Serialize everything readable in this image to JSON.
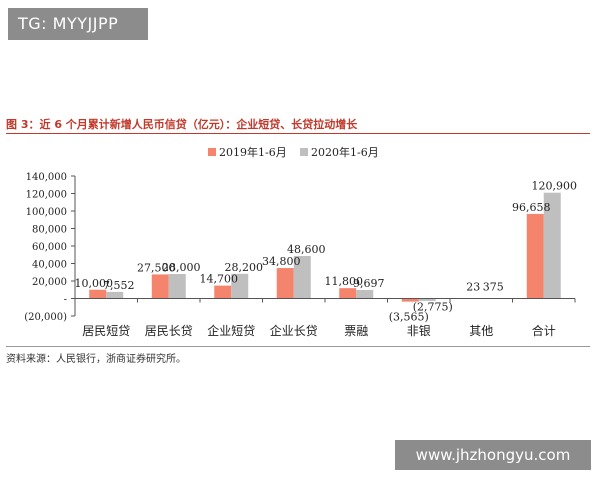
{
  "watermark_top": "TG: MYYJJPP",
  "watermark_bottom": "www.jhzhongyu.com",
  "figure_title": "图 3：近 6 个月累计新增人民币信贷（亿元）：企业短贷、长贷拉动增长",
  "source": "资料来源：人民银行，浙商证券研究所。",
  "colors": {
    "series_2019": "#f4846c",
    "series_2020": "#bfbfbf",
    "title": "#c0392b"
  },
  "chart_data": {
    "type": "bar",
    "title": "",
    "xlabel": "",
    "ylabel": "",
    "ylim": [
      -20000,
      140000
    ],
    "y_ticks": [
      "140,000",
      "120,000",
      "100,000",
      "80,000",
      "60,000",
      "40,000",
      "20,000",
      "-",
      "(20,000)"
    ],
    "y_tick_values": [
      140000,
      120000,
      100000,
      80000,
      60000,
      40000,
      20000,
      0,
      -20000
    ],
    "categories": [
      "居民短贷",
      "居民长贷",
      "企业短贷",
      "企业长贷",
      "票融",
      "非银",
      "其他",
      "合计"
    ],
    "series": [
      {
        "name": "2019年1-6月",
        "values": [
          10000,
          27500,
          14700,
          34800,
          11800,
          -3565,
          23,
          96658
        ],
        "labels": [
          "10,000",
          "27,500",
          "14,700",
          "34,800",
          "11,800",
          "(3,565)",
          "23",
          "96,658"
        ]
      },
      {
        "name": "2020年1-6月",
        "values": [
          7552,
          28000,
          28200,
          48600,
          9697,
          -2775,
          375,
          120900
        ],
        "labels": [
          "7,552",
          "28,000",
          "28,200",
          "48,600",
          "9,697",
          "(2,775)",
          "375",
          "120,900"
        ]
      }
    ],
    "legend_position": "top",
    "grid": false
  }
}
